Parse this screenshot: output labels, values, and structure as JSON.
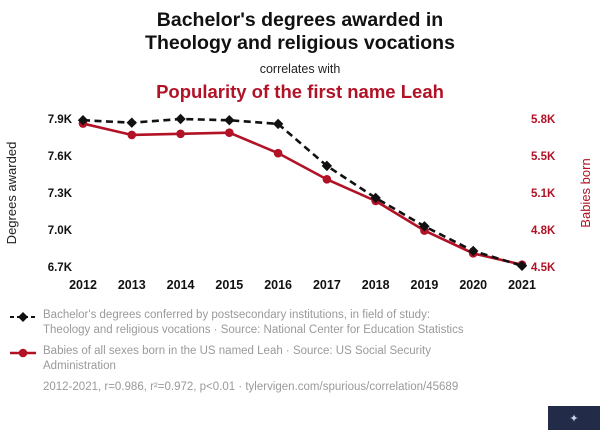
{
  "header": {
    "title_line1": "Bachelor's degrees awarded in",
    "title_line2": "Theology and religious vocations",
    "connector": "correlates with",
    "subtitle": "Popularity of the first name Leah"
  },
  "colors": {
    "accent_red": "#b11226",
    "ink_black": "#111111",
    "legend_gray": "#9a9a9a",
    "logo_navy": "#222c49"
  },
  "chart_data": {
    "type": "line",
    "x": [
      2012,
      2013,
      2014,
      2015,
      2016,
      2017,
      2018,
      2019,
      2020,
      2021
    ],
    "series": [
      {
        "name": "Bachelor's degrees conferred by postsecondary institutions, in field of study: Theology and religious vocations",
        "axis": "left",
        "color": "#111111",
        "style": "dashed",
        "marker": "diamond",
        "values": [
          7890,
          7870,
          7900,
          7890,
          7860,
          7520,
          7260,
          7030,
          6830,
          6710
        ]
      },
      {
        "name": "Babies of all sexes born in the US named Leah",
        "axis": "right",
        "color": "#b11226",
        "style": "solid",
        "marker": "circle",
        "values": [
          5760,
          5660,
          5670,
          5680,
          5500,
          5270,
          5080,
          4820,
          4620,
          4520
        ]
      }
    ],
    "left_axis": {
      "label": "Degrees awarded",
      "ticks": [
        "7.9K",
        "7.6K",
        "7.3K",
        "7.0K",
        "6.7K"
      ],
      "tick_values": [
        7900,
        7600,
        7300,
        7000,
        6700
      ],
      "range": [
        6700,
        7900
      ]
    },
    "right_axis": {
      "label": "Babies born",
      "ticks": [
        "5.8K",
        "5.5K",
        "5.1K",
        "4.8K",
        "4.5K"
      ],
      "tick_values": [
        5800,
        5500,
        5100,
        4800,
        4500
      ],
      "range": [
        4500,
        5800
      ]
    },
    "grid": false,
    "legend_position": "bottom"
  },
  "legend": [
    {
      "marker": "black-dashed-diamond",
      "text": "Bachelor's degrees conferred by postsecondary institutions, in field of study: Theology and religious vocations · Source: National Center for Education Statistics"
    },
    {
      "marker": "red-solid-circle",
      "text": "Babies of all sexes born in the US named Leah · Source: US Social Security Administration"
    }
  ],
  "footer": {
    "stats": "2012-2021, r=0.986, r²=0.972, p<0.01 · tylervigen.com/spurious/correlation/45689"
  }
}
